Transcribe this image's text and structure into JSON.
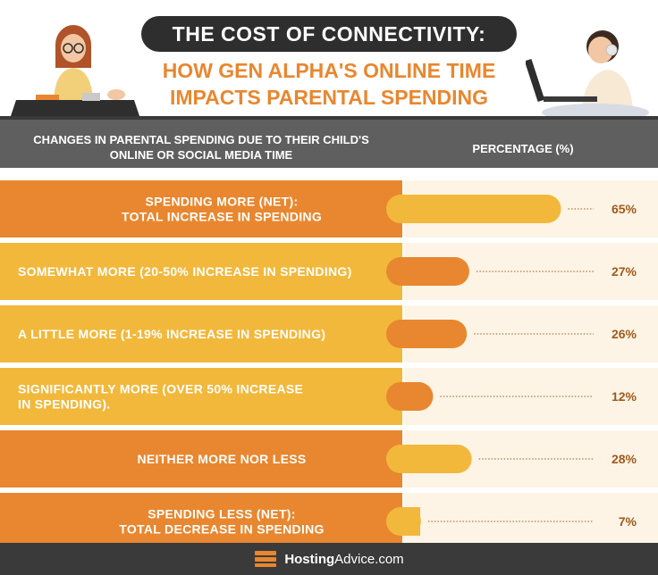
{
  "title": "THE COST OF CONNECTIVITY:",
  "subtitle_line1": "HOW GEN ALPHA'S ONLINE TIME",
  "subtitle_line2": "IMPACTS PARENTAL SPENDING",
  "header": {
    "left_line1": "CHANGES IN PARENTAL SPENDING DUE TO THEIR CHILD'S",
    "left_line2": "ONLINE OR SOCIAL MEDIA TIME",
    "right": "PERCENTAGE (%)"
  },
  "footer": {
    "brand_bold": "Hosting",
    "brand_rest": "Advice.com"
  },
  "colors": {
    "orange": "#e8872f",
    "yellow": "#f2b83b",
    "row_bg_light": "#fdf4e6",
    "dark": "#2e2e2e",
    "value_text": "#a05a1a"
  },
  "chart_data": {
    "type": "bar",
    "orientation": "horizontal",
    "xlim": [
      0,
      100
    ],
    "categories": [
      {
        "line1": "SPENDING MORE (NET):",
        "line2": "TOTAL INCREASE IN SPENDING",
        "align": "center",
        "label_color": "orange",
        "bar_color": "yellow"
      },
      {
        "line1": "SOMEWHAT MORE (20-50% INCREASE IN SPENDING)",
        "line2": "",
        "align": "left",
        "label_color": "yellow",
        "bar_color": "orange"
      },
      {
        "line1": "A LITTLE MORE (1-19% INCREASE IN SPENDING)",
        "line2": "",
        "align": "left",
        "label_color": "yellow",
        "bar_color": "orange"
      },
      {
        "line1": "SIGNIFICANTLY MORE (OVER 50% INCREASE",
        "line2": "IN SPENDING).",
        "align": "left",
        "label_color": "yellow",
        "bar_color": "orange"
      },
      {
        "line1": "NEITHER MORE NOR LESS",
        "line2": "",
        "align": "center",
        "label_color": "orange",
        "bar_color": "yellow"
      },
      {
        "line1": "SPENDING LESS (NET):",
        "line2": "TOTAL DECREASE IN SPENDING",
        "align": "center",
        "label_color": "orange",
        "bar_color": "yellow"
      }
    ],
    "values": [
      65,
      27,
      26,
      12,
      28,
      7
    ],
    "value_labels": [
      "65%",
      "27%",
      "26%",
      "12%",
      "28%",
      "7%"
    ]
  }
}
